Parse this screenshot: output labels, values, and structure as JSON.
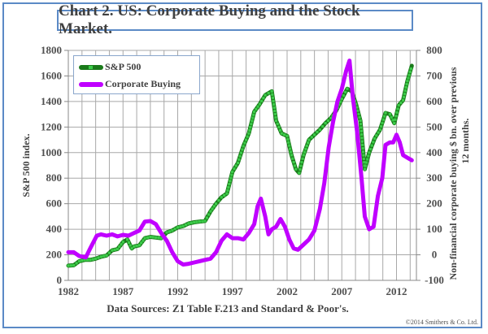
{
  "chart_data": {
    "type": "line",
    "title": "Chart 2. US: Corporate Buying and the Stock Market.",
    "xlabel": "",
    "ylabel_left": "S&P 500 index.",
    "ylabel_right": "Non-financial corporate buying $ bn. over previous 12 months.",
    "ylabel_right_lines": [
      "Non-financial corporate buying $ bn. over previous",
      "12 months."
    ],
    "x_ticks": [
      "1982",
      "1987",
      "1992",
      "1997",
      "2002",
      "2007",
      "2012"
    ],
    "xlim": [
      1982,
      2013.6
    ],
    "y_left_ticks": [
      "0",
      "200",
      "400",
      "600",
      "800",
      "1000",
      "1200",
      "1400",
      "1600",
      "1800"
    ],
    "ylim_left": [
      0,
      1800
    ],
    "y_right_ticks": [
      "-100",
      "0",
      "100",
      "200",
      "300",
      "400",
      "500",
      "600",
      "700",
      "800"
    ],
    "ylim_right": [
      -100,
      800
    ],
    "grid": true,
    "legend_position": "top-left",
    "series": [
      {
        "name": "S&P 500",
        "axis": "left",
        "color": "#1a7a1a",
        "marker_color": "#3ccc4a",
        "x": [
          1982,
          1982.5,
          1983,
          1983.5,
          1984,
          1984.5,
          1985,
          1985.5,
          1986,
          1986.5,
          1987,
          1987.4,
          1987.8,
          1988,
          1988.5,
          1989,
          1989.5,
          1990,
          1990.5,
          1991,
          1991.5,
          1992,
          1992.5,
          1993,
          1993.5,
          1994,
          1994.5,
          1995,
          1995.5,
          1996,
          1996.5,
          1997,
          1997.5,
          1998,
          1998.5,
          1999,
          1999.5,
          2000,
          2000.6,
          2001,
          2001.5,
          2002,
          2002.4,
          2002.8,
          2003.1,
          2003.5,
          2004,
          2004.5,
          2005,
          2005.5,
          2006,
          2006.5,
          2007,
          2007.5,
          2007.9,
          2008.3,
          2008.7,
          2009.1,
          2009.5,
          2010,
          2010.5,
          2011,
          2011.4,
          2011.8,
          2012.2,
          2012.6,
          2013,
          2013.4
        ],
        "values": [
          115,
          118,
          150,
          160,
          160,
          170,
          185,
          195,
          235,
          245,
          300,
          320,
          250,
          265,
          275,
          330,
          340,
          335,
          330,
          375,
          390,
          415,
          425,
          445,
          455,
          460,
          465,
          540,
          600,
          650,
          680,
          850,
          920,
          1050,
          1150,
          1320,
          1380,
          1450,
          1480,
          1250,
          1150,
          1130,
          980,
          870,
          840,
          980,
          1100,
          1140,
          1180,
          1230,
          1270,
          1330,
          1420,
          1500,
          1480,
          1380,
          1250,
          870,
          1000,
          1110,
          1180,
          1310,
          1300,
          1230,
          1370,
          1410,
          1560,
          1680
        ]
      },
      {
        "name": "Corporate Buying",
        "axis": "right",
        "color": "#c000ff",
        "x": [
          1982,
          1982.5,
          1983,
          1983.6,
          1984,
          1984.6,
          1985,
          1985.5,
          1986,
          1986.5,
          1987,
          1987.5,
          1988,
          1988.5,
          1989,
          1989.5,
          1990,
          1990.5,
          1991,
          1991.5,
          1992,
          1992.5,
          1993,
          1993.5,
          1994,
          1994.5,
          1995,
          1995.5,
          1996,
          1996.5,
          1997,
          1997.5,
          1998,
          1998.5,
          1999,
          1999.3,
          1999.6,
          2000,
          2000.3,
          2000.6,
          2001,
          2001.4,
          2001.8,
          2002.2,
          2002.6,
          2003,
          2003.5,
          2004,
          2004.5,
          2005,
          2005.4,
          2005.8,
          2006.2,
          2006.6,
          2007,
          2007.4,
          2007.7,
          2008,
          2008.4,
          2008.8,
          2009.1,
          2009.5,
          2009.9,
          2010.3,
          2010.7,
          2011,
          2011.4,
          2011.7,
          2012,
          2012.3,
          2012.6,
          2013,
          2013.4
        ],
        "values": [
          10,
          10,
          -5,
          -10,
          25,
          75,
          80,
          75,
          80,
          72,
          78,
          75,
          85,
          95,
          130,
          132,
          120,
          85,
          55,
          10,
          -25,
          -38,
          -35,
          -30,
          -25,
          -20,
          -15,
          10,
          55,
          80,
          65,
          65,
          60,
          85,
          120,
          190,
          220,
          150,
          80,
          100,
          110,
          140,
          110,
          60,
          25,
          20,
          40,
          60,
          95,
          180,
          280,
          420,
          520,
          600,
          650,
          720,
          760,
          620,
          480,
          300,
          150,
          100,
          110,
          230,
          300,
          430,
          440,
          440,
          470,
          440,
          390,
          380,
          370
        ]
      }
    ]
  },
  "header": {
    "title": "Chart 2. US: Corporate Buying and the Stock Market."
  },
  "legend": {
    "items": [
      {
        "label": "S&P 500"
      },
      {
        "label": "Corporate Buying"
      }
    ]
  },
  "footer": {
    "source": "Data Sources: Z1 Table F.213 and Standard & Poor's.",
    "copyright": "©2014 Smithers & Co. Ltd."
  }
}
